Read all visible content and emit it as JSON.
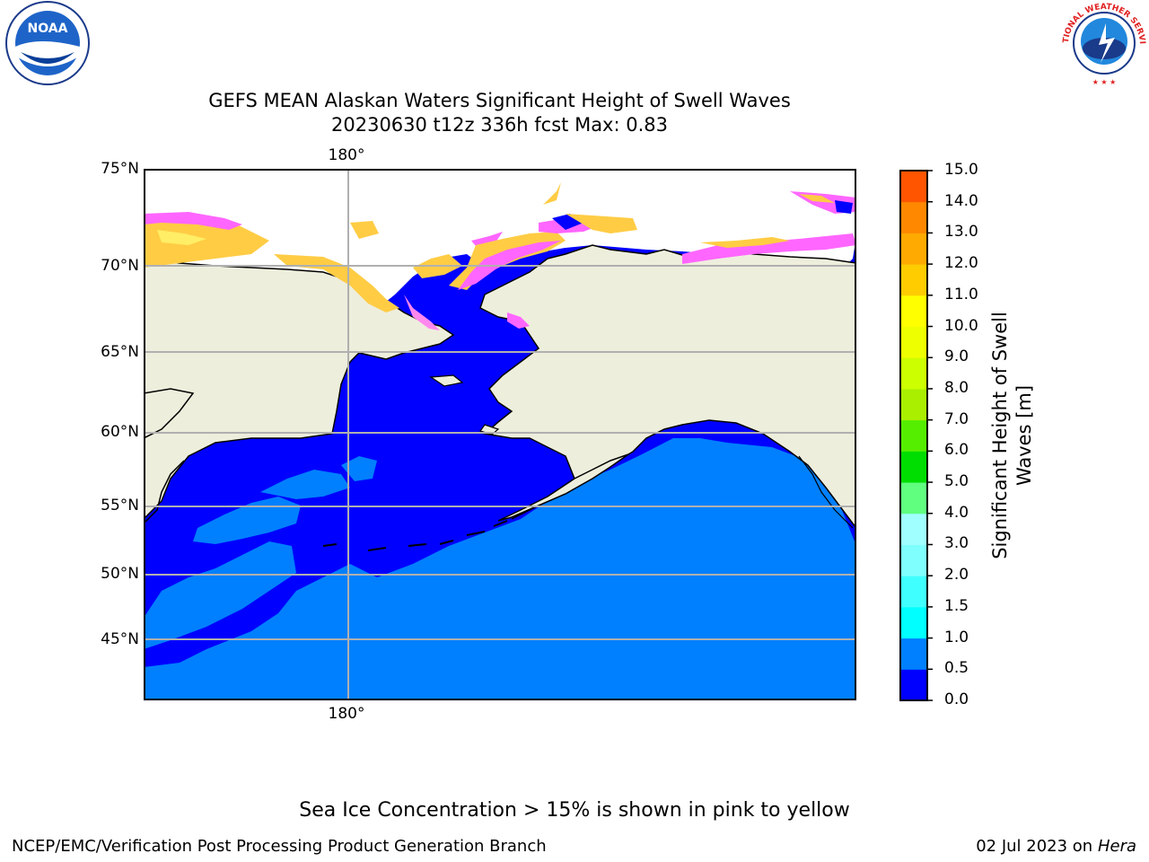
{
  "title": {
    "line1": "GEFS MEAN Alaskan Waters Significant Height of Swell Waves",
    "line2": "20230630 t12z 336h fcst   Max: 0.83"
  },
  "logos": {
    "left": "NOAA",
    "right": "NATIONAL WEATHER SERVICE"
  },
  "map": {
    "lat_labels": [
      "75°N",
      "70°N",
      "65°N",
      "60°N",
      "55°N",
      "50°N",
      "45°N"
    ],
    "lon_labels": {
      "top": "180°",
      "bottom": "180°"
    },
    "colors": {
      "land": "#eeeedd",
      "sea_low": "#0000ff",
      "sea_mid": "#0080ff",
      "ice_pink": "#ff66ff",
      "ice_yellow": "#ffcc44"
    }
  },
  "colorbar": {
    "title": "Significant Height of Swell Waves [m]",
    "title_line1": "Significant Height of Swell",
    "title_line2": "Waves [m]",
    "tick_labels": [
      "0.0",
      "0.5",
      "1.0",
      "1.5",
      "2.0",
      "3.0",
      "4.0",
      "5.0",
      "6.0",
      "7.0",
      "8.0",
      "9.0",
      "10.0",
      "11.0",
      "12.0",
      "13.0",
      "14.0",
      "15.0"
    ],
    "colors": [
      "#0000ff",
      "#0080ff",
      "#00ffff",
      "#40ffff",
      "#80ffff",
      "#a0ffff",
      "#60ff80",
      "#00dd00",
      "#55ee00",
      "#aaee00",
      "#ccff00",
      "#eeff00",
      "#ffff00",
      "#ffcc00",
      "#ffaa00",
      "#ff8800",
      "#ff5500",
      "#ff2200",
      "#ff0000"
    ]
  },
  "footer": {
    "note": "Sea Ice Concentration > 15% is shown in pink to yellow",
    "left": "NCEP/EMC/Verification Post Processing Product Generation Branch",
    "date": "02 Jul 2023 on ",
    "host": "Hera"
  }
}
